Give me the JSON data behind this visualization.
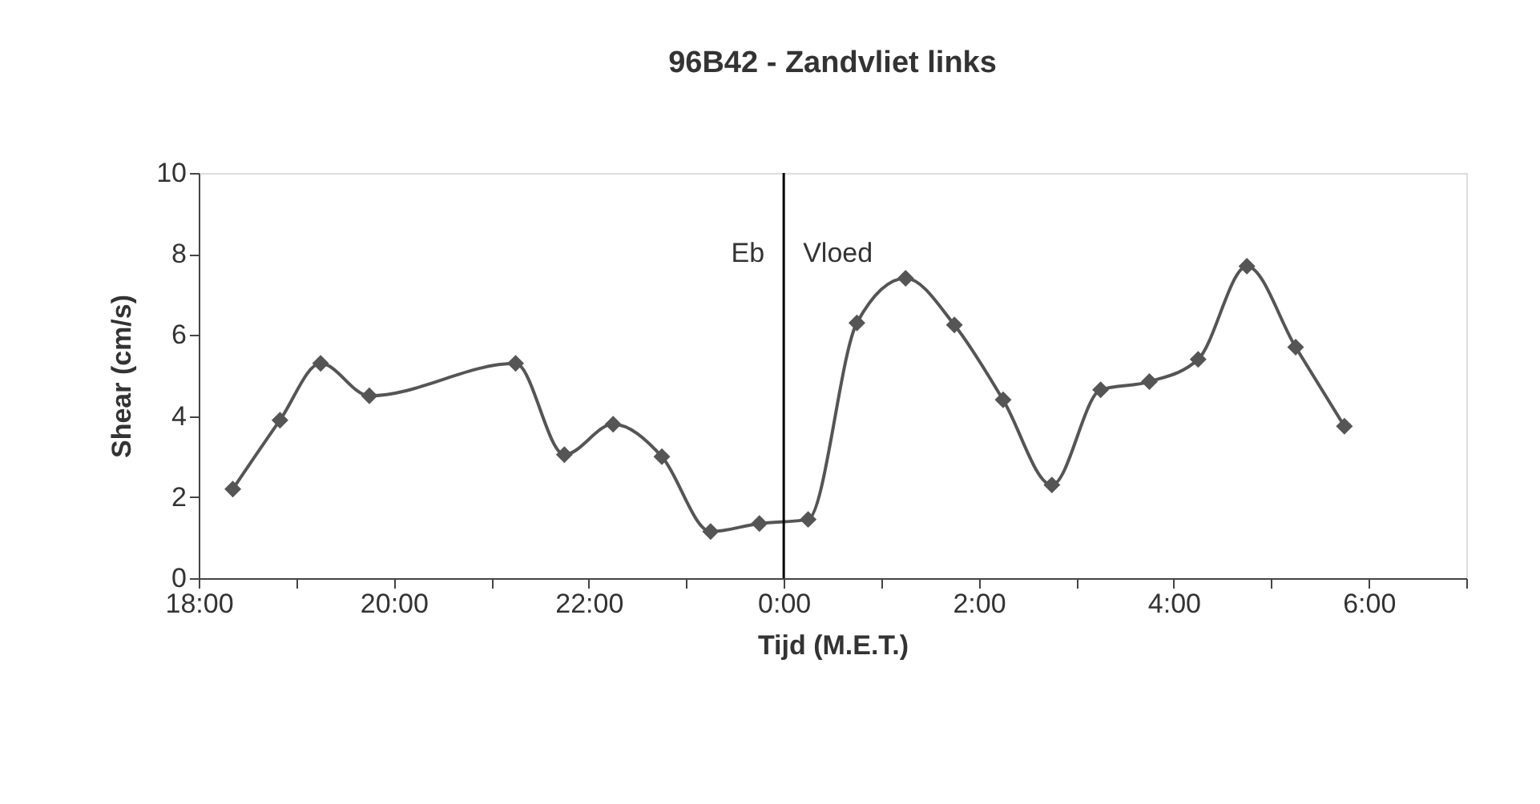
{
  "chart_data": {
    "type": "line",
    "title": "96B42 - Zandvliet links",
    "xlabel": "Tijd (M.E.T.)",
    "ylabel": "Shear (cm/s)",
    "x": [
      "2000-01-01T18:21",
      "2000-01-01T18:50",
      "2000-01-01T19:15",
      "2000-01-01T19:45",
      "2000-01-01T21:15",
      "2000-01-01T21:45",
      "2000-01-01T22:15",
      "2000-01-01T22:45",
      "2000-01-01T23:15",
      "2000-01-01T23:45",
      "2000-01-02T00:15",
      "2000-01-02T00:45",
      "2000-01-02T01:15",
      "2000-01-02T01:45",
      "2000-01-02T02:15",
      "2000-01-02T02:45",
      "2000-01-02T03:15",
      "2000-01-02T03:45",
      "2000-01-02T04:15",
      "2000-01-02T04:45",
      "2000-01-02T05:15",
      "2000-01-02T05:45"
    ],
    "series": [
      {
        "color": "#555555",
        "values": [
          2.2,
          3.9,
          5.3,
          4.5,
          5.3,
          3.05,
          3.8,
          3.0,
          1.15,
          1.35,
          1.45,
          6.3,
          7.4,
          6.25,
          4.4,
          2.3,
          4.65,
          4.85,
          5.4,
          7.7,
          5.7,
          3.75
        ]
      }
    ],
    "xlim": [
      "2000-01-01T18:00",
      "2000-01-02T07:00"
    ],
    "ylim": [
      0,
      10
    ],
    "xticks": [
      {
        "value": "2000-01-01T18:00",
        "label": "18:00"
      },
      {
        "value": "2000-01-01T19:00",
        "label": null
      },
      {
        "value": "2000-01-01T20:00",
        "label": "20:00"
      },
      {
        "value": "2000-01-01T21:00",
        "label": null
      },
      {
        "value": "2000-01-01T22:00",
        "label": "22:00"
      },
      {
        "value": "2000-01-01T23:00",
        "label": null
      },
      {
        "value": "2000-01-02T00:00",
        "label": "0:00"
      },
      {
        "value": "2000-01-02T01:00",
        "label": null
      },
      {
        "value": "2000-01-02T02:00",
        "label": "2:00"
      },
      {
        "value": "2000-01-02T03:00",
        "label": null
      },
      {
        "value": "2000-01-02T04:00",
        "label": "4:00"
      },
      {
        "value": "2000-01-02T05:00",
        "label": null
      },
      {
        "value": "2000-01-02T06:00",
        "label": "6:00"
      },
      {
        "value": "2000-01-02T07:00",
        "label": null
      }
    ],
    "yticks": [
      0,
      2,
      4,
      6,
      8,
      10
    ],
    "ref_lines": [
      {
        "axis": "x",
        "value": "2000-01-02T00:00",
        "color": "#000000"
      }
    ],
    "annotations": [
      {
        "text": "Eb",
        "x": "2000-01-02T00:00",
        "y": 8
      },
      {
        "text": "Vloed",
        "x": "2000-01-02T00:00",
        "y": 8
      }
    ],
    "grid": false,
    "marker": "diamond",
    "line_style": "solid"
  }
}
